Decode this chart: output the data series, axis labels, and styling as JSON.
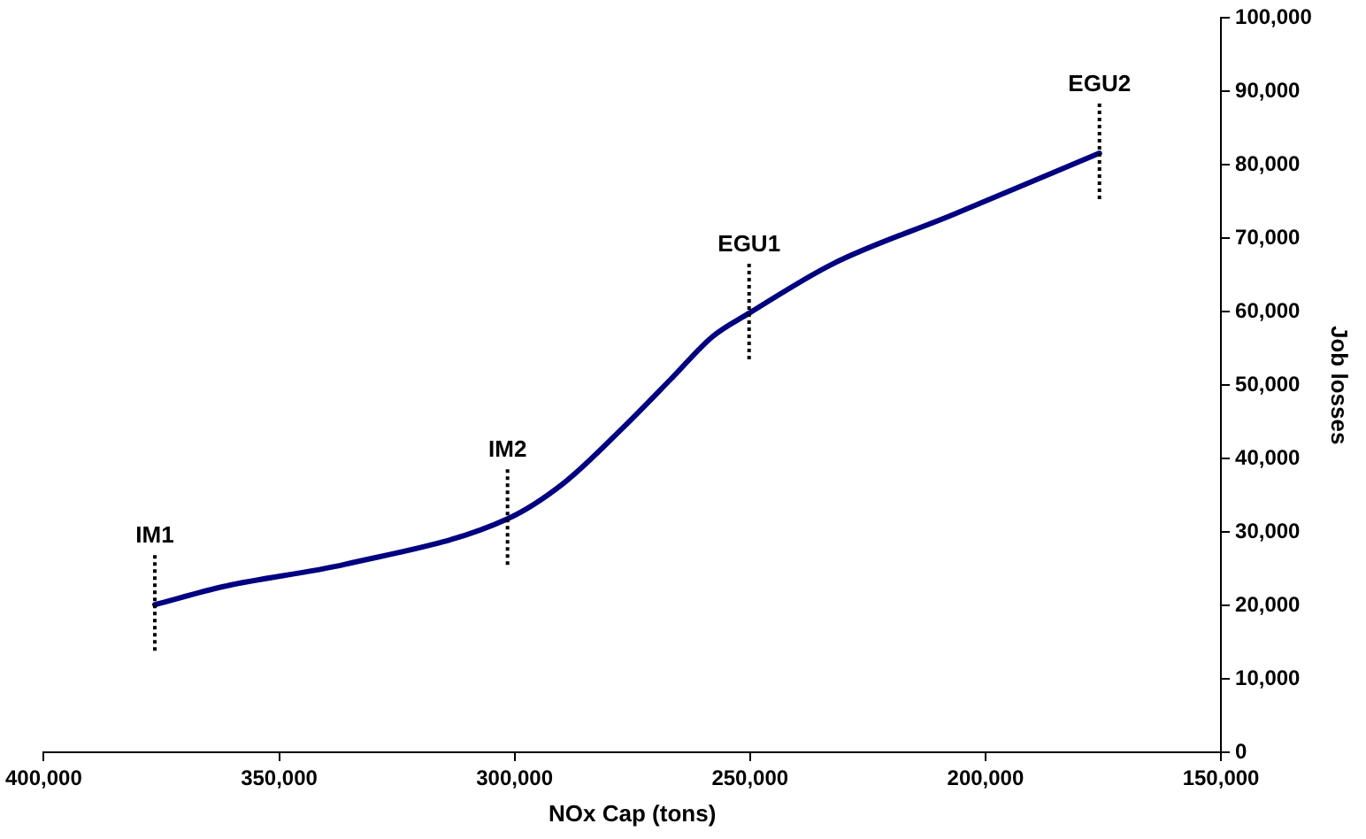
{
  "chart_data": {
    "type": "line",
    "xlabel": "NOx Cap (tons)",
    "ylabel": "Job losses",
    "x": [
      376400,
      361600,
      336000,
      301500,
      289500,
      277000,
      266700,
      258000,
      250200,
      232500,
      207000,
      175800
    ],
    "series": [
      {
        "color": "#000080",
        "values": [
          20100,
          22600,
          25600,
          31800,
          36700,
          44200,
          50900,
          56600,
          59800,
          66500,
          73200,
          81600
        ]
      }
    ],
    "xlim": [
      400000,
      150000
    ],
    "xticks": [
      {
        "value": 400000,
        "label": "400,000"
      },
      {
        "value": 350000,
        "label": "350,000"
      },
      {
        "value": 300000,
        "label": "300,000"
      },
      {
        "value": 250000,
        "label": "250,000"
      },
      {
        "value": 200000,
        "label": "200,000"
      },
      {
        "value": 150000,
        "label": "150,000"
      }
    ],
    "ylim": [
      0,
      100000
    ],
    "yticks": [
      0,
      {
        "value": 10000,
        "label": "10,000"
      },
      {
        "value": 20000,
        "label": "20,000"
      },
      {
        "value": 30000,
        "label": "30,000"
      },
      {
        "value": 40000,
        "label": "40,000"
      },
      {
        "value": 50000,
        "label": "50,000"
      },
      {
        "value": 60000,
        "label": "60,000"
      },
      {
        "value": 70000,
        "label": "70,000"
      },
      {
        "value": 80000,
        "label": "80,000"
      },
      {
        "value": 90000,
        "label": "90,000"
      },
      {
        "value": 100000,
        "label": "100,000"
      }
    ],
    "annotations": [
      {
        "text": "IM1",
        "x": 376400,
        "y": 20100
      },
      {
        "text": "IM2",
        "x": 301500,
        "y": 31800
      },
      {
        "text": "EGU1",
        "x": 250200,
        "y": 59800
      },
      {
        "text": "EGU2",
        "x": 175800,
        "y": 81600
      }
    ],
    "grid": false,
    "legend": false,
    "marker": "none",
    "line_style": "solid"
  }
}
